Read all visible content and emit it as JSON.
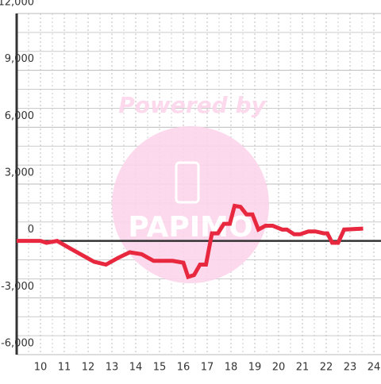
{
  "chart_data": {
    "type": "line",
    "watermark": [
      "Powered by",
      "PAPIMO"
    ],
    "x": [
      9.0,
      10.0,
      10.25,
      10.7,
      11.25,
      12.25,
      12.75,
      13.25,
      13.75,
      14.25,
      14.75,
      15.55,
      16.0,
      16.2,
      16.45,
      16.7,
      16.95,
      17.2,
      17.45,
      17.7,
      17.95,
      18.15,
      18.4,
      18.65,
      18.9,
      19.15,
      19.45,
      19.75,
      20.15,
      20.35,
      20.65,
      20.9,
      21.25,
      21.55,
      21.9,
      22.05,
      22.25,
      22.5,
      22.75,
      23.55
    ],
    "series": [
      {
        "color": "#e8283f",
        "values": [
          0,
          0,
          -100,
          0,
          -400,
          -1100,
          -1250,
          -900,
          -600,
          -700,
          -1050,
          -1050,
          -1150,
          -1900,
          -1800,
          -1250,
          -1250,
          400,
          400,
          900,
          900,
          1850,
          1800,
          1400,
          1400,
          600,
          800,
          800,
          600,
          600,
          350,
          350,
          500,
          500,
          400,
          400,
          -100,
          -100,
          600,
          650
        ]
      }
    ],
    "xlim": [
      9,
      24.3
    ],
    "xticks": [
      10,
      11,
      12,
      13,
      14,
      15,
      16,
      17,
      18,
      19,
      20,
      21,
      22,
      23,
      24
    ],
    "ylim": [
      -6000,
      12000
    ],
    "yticks": [
      {
        "value": -6000,
        "label": "-6,000"
      },
      {
        "value": -3000,
        "label": "-3,000"
      },
      0,
      {
        "value": 3000,
        "label": "3,000"
      },
      {
        "value": 6000,
        "label": "6,000"
      },
      {
        "value": 9000,
        "label": "9,000"
      },
      {
        "value": 12000,
        "label": "12,000"
      }
    ],
    "grid": true
  }
}
